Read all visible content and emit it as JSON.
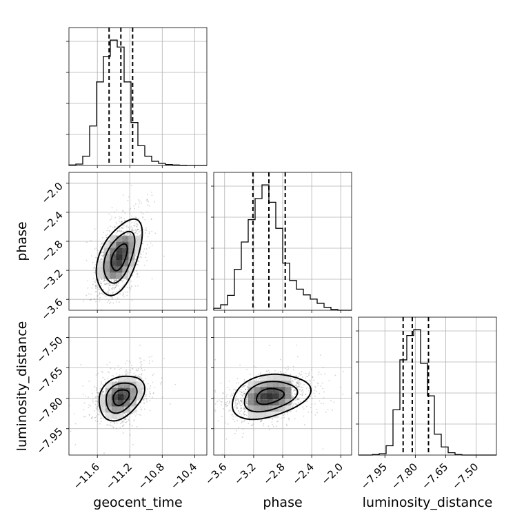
{
  "chart_data": {
    "type": "corner",
    "parameters": [
      "geocent_time",
      "phase",
      "luminosity_distance"
    ],
    "axis_labels": {
      "geocent_time": "geocent_time",
      "phase": "phase",
      "luminosity_distance": "luminosity_distance"
    },
    "ranges": {
      "geocent_time": [
        -11.95,
        -10.25
      ],
      "phase": [
        -3.75,
        -1.85
      ],
      "luminosity_distance": [
        -8.08,
        -7.4
      ]
    },
    "ticks": {
      "geocent_time": [
        -11.6,
        -11.2,
        -10.8,
        -10.4
      ],
      "phase": [
        -3.6,
        -3.2,
        -2.8,
        -2.4,
        -2.0
      ],
      "luminosity_distance": [
        -7.95,
        -7.8,
        -7.65,
        -7.5
      ]
    },
    "tick_labels": {
      "geocent_time": [
        "−11.6",
        "−11.2",
        "−10.8",
        "−10.4"
      ],
      "phase": [
        "−3.6",
        "−3.2",
        "−2.8",
        "−2.4",
        "−2.0"
      ],
      "luminosity_distance": [
        "−7.95",
        "−7.80",
        "−7.65",
        "−7.50"
      ]
    },
    "grid": true,
    "histograms": {
      "geocent_time": {
        "bin_edges": [
          -11.95,
          -11.865,
          -11.78,
          -11.695,
          -11.61,
          -11.525,
          -11.44,
          -11.355,
          -11.27,
          -11.185,
          -11.1,
          -11.015,
          -10.93,
          -10.845,
          -10.76,
          -10.675,
          -10.59,
          -10.505,
          -10.42,
          -10.335,
          -10.25
        ],
        "counts": [
          2,
          6,
          40,
          170,
          360,
          470,
          540,
          510,
          360,
          185,
          85,
          40,
          18,
          9,
          4,
          2,
          1,
          0,
          0,
          0
        ],
        "quantiles": [
          -11.455,
          -11.31,
          -11.165
        ]
      },
      "phase": {
        "bin_edges": [
          -3.75,
          -3.655,
          -3.56,
          -3.465,
          -3.37,
          -3.275,
          -3.18,
          -3.085,
          -2.99,
          -2.895,
          -2.8,
          -2.705,
          -2.61,
          -2.515,
          -2.42,
          -2.325,
          -2.23,
          -2.135,
          -2.04,
          -1.945,
          -1.85
        ],
        "counts": [
          8,
          22,
          60,
          165,
          275,
          365,
          450,
          505,
          435,
          330,
          190,
          120,
          85,
          62,
          45,
          28,
          12,
          3,
          0,
          0
        ],
        "quantiles": [
          -3.21,
          -2.99,
          -2.765
        ]
      },
      "luminosity_distance": {
        "bin_edges": [
          -8.08,
          -8.046,
          -8.012,
          -7.978,
          -7.944,
          -7.91,
          -7.876,
          -7.842,
          -7.808,
          -7.774,
          -7.74,
          -7.706,
          -7.672,
          -7.638,
          -7.604,
          -7.57,
          -7.536,
          -7.502,
          -7.468,
          -7.434,
          -7.4
        ],
        "counts": [
          0,
          0,
          2,
          6,
          40,
          195,
          410,
          515,
          540,
          395,
          255,
          90,
          35,
          10,
          2,
          0,
          0,
          0,
          0,
          0
        ],
        "quantiles": [
          -7.86,
          -7.815,
          -7.735
        ]
      }
    },
    "joint": [
      {
        "x": "geocent_time",
        "y": "phase",
        "mean": [
          -11.33,
          -3.02
        ],
        "sd": [
          0.14,
          0.26
        ],
        "rho": 0.5
      },
      {
        "x": "geocent_time",
        "y": "luminosity_distance",
        "mean": [
          -11.31,
          -7.795
        ],
        "sd": [
          0.14,
          0.055
        ],
        "rho": 0.3
      },
      {
        "x": "phase",
        "y": "luminosity_distance",
        "mean": [
          -2.98,
          -7.79
        ],
        "sd": [
          0.27,
          0.055
        ],
        "rho": 0.3
      }
    ]
  }
}
